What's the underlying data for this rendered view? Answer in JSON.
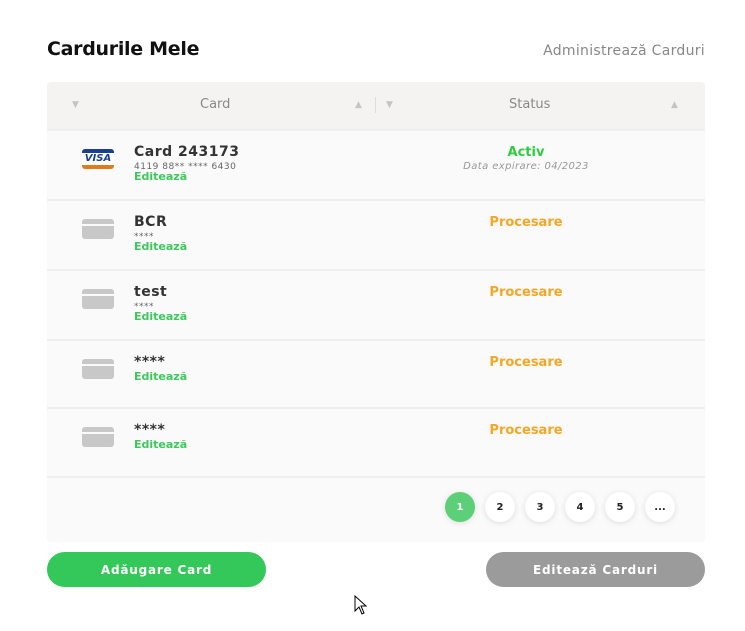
{
  "header": {
    "title": "Cardurile Mele",
    "manage_link": "Administrează Carduri"
  },
  "table": {
    "columns": [
      "Card",
      "Status"
    ],
    "rows": [
      {
        "icon": "visa-icon",
        "name": "Card 243173",
        "number": "4119 88** **** 6430",
        "edit": "Editează",
        "status": "Activ",
        "status_color": "#2ecc40",
        "expiry": "Data expirare: 04/2023"
      },
      {
        "icon": "card-icon",
        "name": "BCR",
        "number": "****",
        "edit": "Editează",
        "status": "Procesare",
        "status_color": "#f5a623"
      },
      {
        "icon": "card-icon",
        "name": "test",
        "number": "****",
        "edit": "Editează",
        "status": "Procesare",
        "status_color": "#f5a623"
      },
      {
        "icon": "card-icon",
        "name": "****",
        "edit": "Editează",
        "status": "Procesare",
        "status_color": "#f5a623"
      },
      {
        "icon": "card-icon",
        "name": "****",
        "edit": "Editează",
        "status": "Procesare",
        "status_color": "#f5a623"
      }
    ]
  },
  "pagination": {
    "pages": [
      "1",
      "2",
      "3",
      "4",
      "5",
      "..."
    ],
    "current": "1"
  },
  "buttons": {
    "add": "Adăugare Card",
    "edit": "Editează Carduri"
  },
  "visa_logo": "VISA"
}
